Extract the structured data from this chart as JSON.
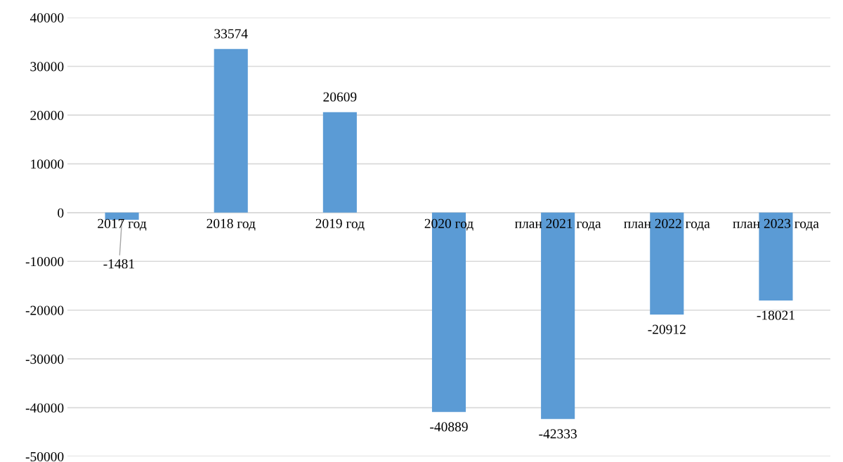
{
  "chart_data": {
    "type": "bar",
    "categories": [
      "2017 год",
      "2018 год",
      "2019 год",
      "2020 год",
      "план 2021 года",
      "план 2022 года",
      "план 2023 года"
    ],
    "values": [
      -1481,
      33574,
      20609,
      -40889,
      -42333,
      -20912,
      -18021
    ],
    "color": "#5b9bd5",
    "ylim": [
      -50000,
      40000
    ],
    "yticks": [
      -50000,
      -40000,
      -30000,
      -20000,
      -10000,
      0,
      10000,
      20000,
      30000,
      40000
    ],
    "grid": "y",
    "data_labels": true
  }
}
